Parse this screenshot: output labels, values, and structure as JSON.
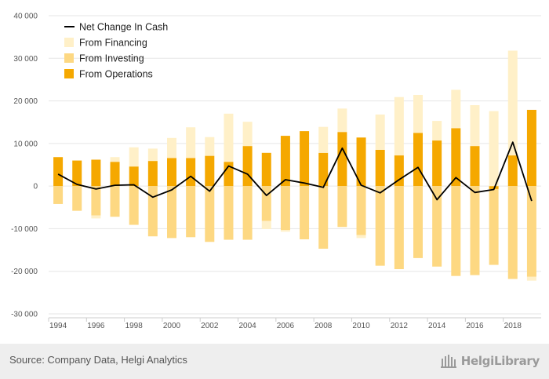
{
  "chart_data": {
    "type": "bar",
    "stacked": true,
    "categories": [
      "1994",
      "1995",
      "1996",
      "1997",
      "1998",
      "1999",
      "2000",
      "2001",
      "2002",
      "2003",
      "2004",
      "2005",
      "2006",
      "2007",
      "2008",
      "2009",
      "2010",
      "2011",
      "2012",
      "2013",
      "2014",
      "2015",
      "2016",
      "2017",
      "2018",
      "2019"
    ],
    "x_tick_labels": [
      "1994",
      "1996",
      "1998",
      "2000",
      "2002",
      "2004",
      "2006",
      "2008",
      "2010",
      "2012",
      "2014",
      "2016",
      "2018"
    ],
    "y_tick_labels": [
      "40 000",
      "30 000",
      "20 000",
      "10 000",
      "0",
      "-10 000",
      "-20 000",
      "-30 000"
    ],
    "ylim": [
      -30000,
      40000
    ],
    "y_ticks": [
      -30000,
      -20000,
      -10000,
      0,
      10000,
      20000,
      30000,
      40000
    ],
    "grid": true,
    "legend_position": "top-left",
    "series": [
      {
        "name": "From Operations",
        "kind": "bar",
        "color": "#f5a800",
        "values": [
          6800,
          6000,
          6200,
          5700,
          4600,
          5900,
          6600,
          6600,
          7100,
          5700,
          9400,
          7800,
          11800,
          12900,
          7800,
          12700,
          11400,
          8500,
          7200,
          12500,
          10700,
          13600,
          9400,
          -700,
          7200,
          17900
        ]
      },
      {
        "name": "From Investing",
        "kind": "bar",
        "color": "#fdd882",
        "values": [
          -4200,
          -5800,
          -6900,
          -7200,
          -9100,
          -11800,
          -12200,
          -12000,
          -13100,
          -12600,
          -12600,
          -8200,
          -10300,
          -12500,
          -14700,
          -9600,
          -11500,
          -18700,
          -19500,
          -16900,
          -18900,
          -21100,
          -20900,
          -17800,
          -21800,
          -21300
        ]
      },
      {
        "name": "From Financing",
        "kind": "bar",
        "color": "#fff0c8",
        "values": [
          0,
          0,
          -700,
          1100,
          4500,
          2900,
          4700,
          7200,
          4400,
          11300,
          5700,
          -1900,
          -400,
          0,
          6100,
          5500,
          -700,
          8300,
          13700,
          8900,
          4600,
          9000,
          9600,
          17600,
          24600,
          -900
        ]
      },
      {
        "name": "Net Change In Cash",
        "kind": "line",
        "color": "#000000",
        "values": [
          2800,
          400,
          -700,
          200,
          300,
          -2600,
          -900,
          2300,
          -1200,
          4700,
          2800,
          -2200,
          1500,
          700,
          -300,
          8900,
          200,
          -1600,
          1500,
          4400,
          -3200,
          2000,
          -1500,
          -800,
          10300,
          -3500
        ]
      }
    ]
  },
  "footer": {
    "source": "Source: Company Data, Helgi Analytics",
    "brand": "HelgiLibrary"
  },
  "colors": {
    "grid": "#e6e6e6",
    "axis": "#cccccc",
    "footer_bg": "#eeeeee"
  }
}
